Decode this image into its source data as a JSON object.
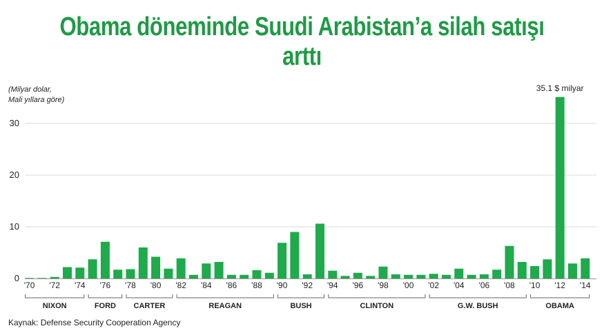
{
  "title": "Obama döneminde Suudi Arabistan’a silah satışı arttı",
  "unit_lines": [
    "(Milyar dolar,",
    "Mali yıllara göre)"
  ],
  "source": "Kaynak: Defense Security Cooperation Agency",
  "chart_data": {
    "type": "bar",
    "x": [
      1970,
      1971,
      1972,
      1973,
      1974,
      1975,
      1976,
      1977,
      1978,
      1979,
      1980,
      1981,
      1982,
      1983,
      1984,
      1985,
      1986,
      1987,
      1988,
      1989,
      1990,
      1991,
      1992,
      1993,
      1994,
      1995,
      1996,
      1997,
      1998,
      1999,
      2000,
      2001,
      2002,
      2003,
      2004,
      2005,
      2006,
      2007,
      2008,
      2009,
      2010,
      2011,
      2012,
      2013,
      2014
    ],
    "values": [
      0.1,
      0.1,
      0.3,
      2.2,
      2.1,
      3.7,
      7.1,
      1.7,
      1.8,
      6.0,
      4.2,
      1.9,
      3.9,
      0.7,
      2.9,
      3.2,
      0.7,
      0.7,
      1.6,
      1.1,
      6.9,
      9.0,
      0.8,
      10.6,
      1.5,
      0.5,
      1.1,
      0.5,
      2.3,
      0.8,
      0.7,
      0.7,
      0.9,
      0.7,
      1.9,
      0.7,
      0.8,
      1.7,
      6.3,
      3.2,
      2.4,
      3.7,
      35.1,
      2.9,
      3.9
    ],
    "x_tick_labels": [
      "'70",
      "'72",
      "'74",
      "'76",
      "'78",
      "'80",
      "'82",
      "'84",
      "'86",
      "'88",
      "'90",
      "'92",
      "'94",
      "'96",
      "'98",
      "'00",
      "'02",
      "'04",
      "'06",
      "'08",
      "'10",
      "'12",
      "'14"
    ],
    "x_tick_years": [
      1970,
      1972,
      1974,
      1976,
      1978,
      1980,
      1982,
      1984,
      1986,
      1988,
      1990,
      1992,
      1994,
      1996,
      1998,
      2000,
      2002,
      2004,
      2006,
      2008,
      2010,
      2012,
      2014
    ],
    "y_ticks": [
      0,
      10,
      20,
      30
    ],
    "ylim": [
      0,
      36
    ],
    "grid": true,
    "presidents": [
      {
        "name": "NIXON",
        "start": 1970,
        "end": 1974
      },
      {
        "name": "FORD",
        "start": 1975,
        "end": 1977
      },
      {
        "name": "CARTER",
        "start": 1978,
        "end": 1981
      },
      {
        "name": "REAGAN",
        "start": 1982,
        "end": 1989
      },
      {
        "name": "BUSH",
        "start": 1990,
        "end": 1993
      },
      {
        "name": "CLINTON",
        "start": 1994,
        "end": 2001
      },
      {
        "name": "G.W. BUSH",
        "start": 2002,
        "end": 2009
      },
      {
        "name": "OBAMA",
        "start": 2010,
        "end": 2014
      }
    ],
    "annotation": {
      "text": "35.1 $ milyar",
      "year": 2012
    },
    "bar_color": "#1faa4b"
  }
}
